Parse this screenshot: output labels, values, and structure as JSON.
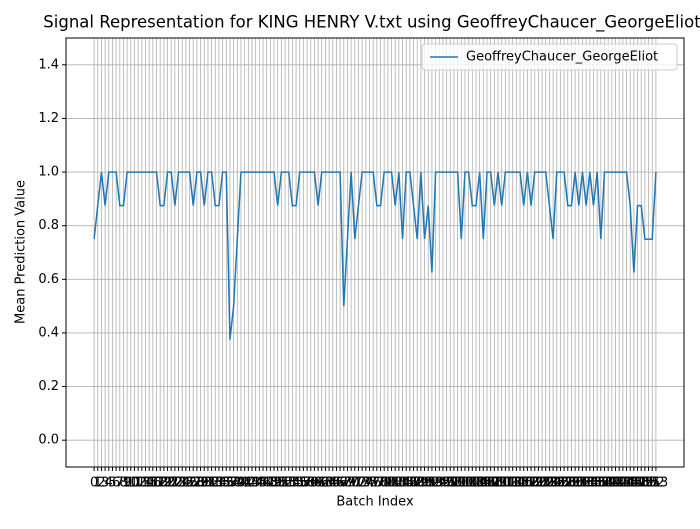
{
  "chart_data": {
    "type": "line",
    "title": "Signal Representation for KING HENRY V.txt using GeoffreyChaucer_GeorgeEliot",
    "xlabel": "Batch Index",
    "ylabel": "Mean Prediction Value",
    "x": [
      0,
      1,
      2,
      3,
      4,
      5,
      6,
      7,
      8,
      9,
      10,
      11,
      12,
      13,
      14,
      15,
      16,
      17,
      18,
      19,
      20,
      21,
      22,
      23,
      24,
      25,
      26,
      27,
      28,
      29,
      30,
      31,
      32,
      33,
      34,
      35,
      36,
      37,
      38,
      39,
      40,
      41,
      42,
      43,
      44,
      45,
      46,
      47,
      48,
      49,
      50,
      51,
      52,
      53,
      54,
      55,
      56,
      57,
      58,
      59,
      60,
      61,
      62,
      63,
      64,
      65,
      66,
      67,
      68,
      69,
      70,
      71,
      72,
      73,
      74,
      75,
      76,
      77,
      78,
      79,
      80,
      81,
      82,
      83,
      84,
      85,
      86,
      87,
      88,
      89,
      90,
      91,
      92,
      93,
      94,
      95,
      96,
      97,
      98,
      99,
      100,
      101,
      102,
      103,
      104,
      105,
      106,
      107,
      108,
      109,
      110,
      111,
      112,
      113,
      114,
      115,
      116,
      117,
      118,
      119,
      120,
      121,
      122,
      123,
      124,
      125,
      126,
      127,
      128,
      129,
      130,
      131,
      132,
      133,
      134,
      135,
      136,
      137,
      138,
      139,
      140,
      141,
      142,
      143,
      144,
      145,
      146,
      147,
      148,
      149,
      150,
      151,
      152,
      153
    ],
    "series": [
      {
        "name": "GeoffreyChaucer_GeorgeEliot",
        "color": "#1f77b4",
        "values": [
          0.75,
          0.875,
          1,
          0.875,
          1,
          1,
          1,
          0.875,
          0.875,
          1,
          1,
          1,
          1,
          1,
          1,
          1,
          1,
          1,
          0.875,
          0.875,
          1,
          1,
          0.875,
          1,
          1,
          1,
          1,
          0.875,
          1,
          1,
          0.875,
          1,
          1,
          0.875,
          0.875,
          1,
          1,
          0.375,
          0.5,
          0.75,
          1,
          1,
          1,
          1,
          1,
          1,
          1,
          1,
          1,
          1,
          0.875,
          1,
          1,
          1,
          0.875,
          0.875,
          1,
          1,
          1,
          1,
          1,
          0.875,
          1,
          1,
          1,
          1,
          1,
          1,
          0.5,
          0.75,
          1,
          0.75,
          0.875,
          1,
          1,
          1,
          1,
          0.875,
          0.875,
          1,
          1,
          1,
          0.875,
          1,
          0.75,
          1,
          1,
          0.875,
          0.75,
          1,
          0.75,
          0.875,
          0.625,
          1,
          1,
          1,
          1,
          1,
          1,
          1,
          0.75,
          1,
          1,
          0.875,
          0.875,
          1,
          0.75,
          1,
          1,
          0.875,
          1,
          0.875,
          1,
          1,
          1,
          1,
          1,
          0.875,
          1,
          0.875,
          1,
          1,
          1,
          1,
          0.875,
          0.75,
          1,
          1,
          1,
          0.875,
          0.875,
          1,
          0.875,
          1,
          0.875,
          1,
          0.875,
          1,
          0.75,
          1,
          1,
          1,
          1,
          1,
          1,
          1,
          0.875,
          0.625,
          0.875,
          0.875,
          0.75,
          0.75,
          0.75,
          1
        ]
      }
    ],
    "xlim": [
      -7.65,
      160.65
    ],
    "ylim": [
      -0.1,
      1.5
    ],
    "yticks": [
      {
        "value": 0,
        "label": "0.0"
      },
      0.2,
      0.4,
      0.6,
      0.8,
      {
        "value": 1,
        "label": "1.0"
      },
      1.2,
      1.4
    ],
    "grid": true,
    "legend": "upper right"
  }
}
